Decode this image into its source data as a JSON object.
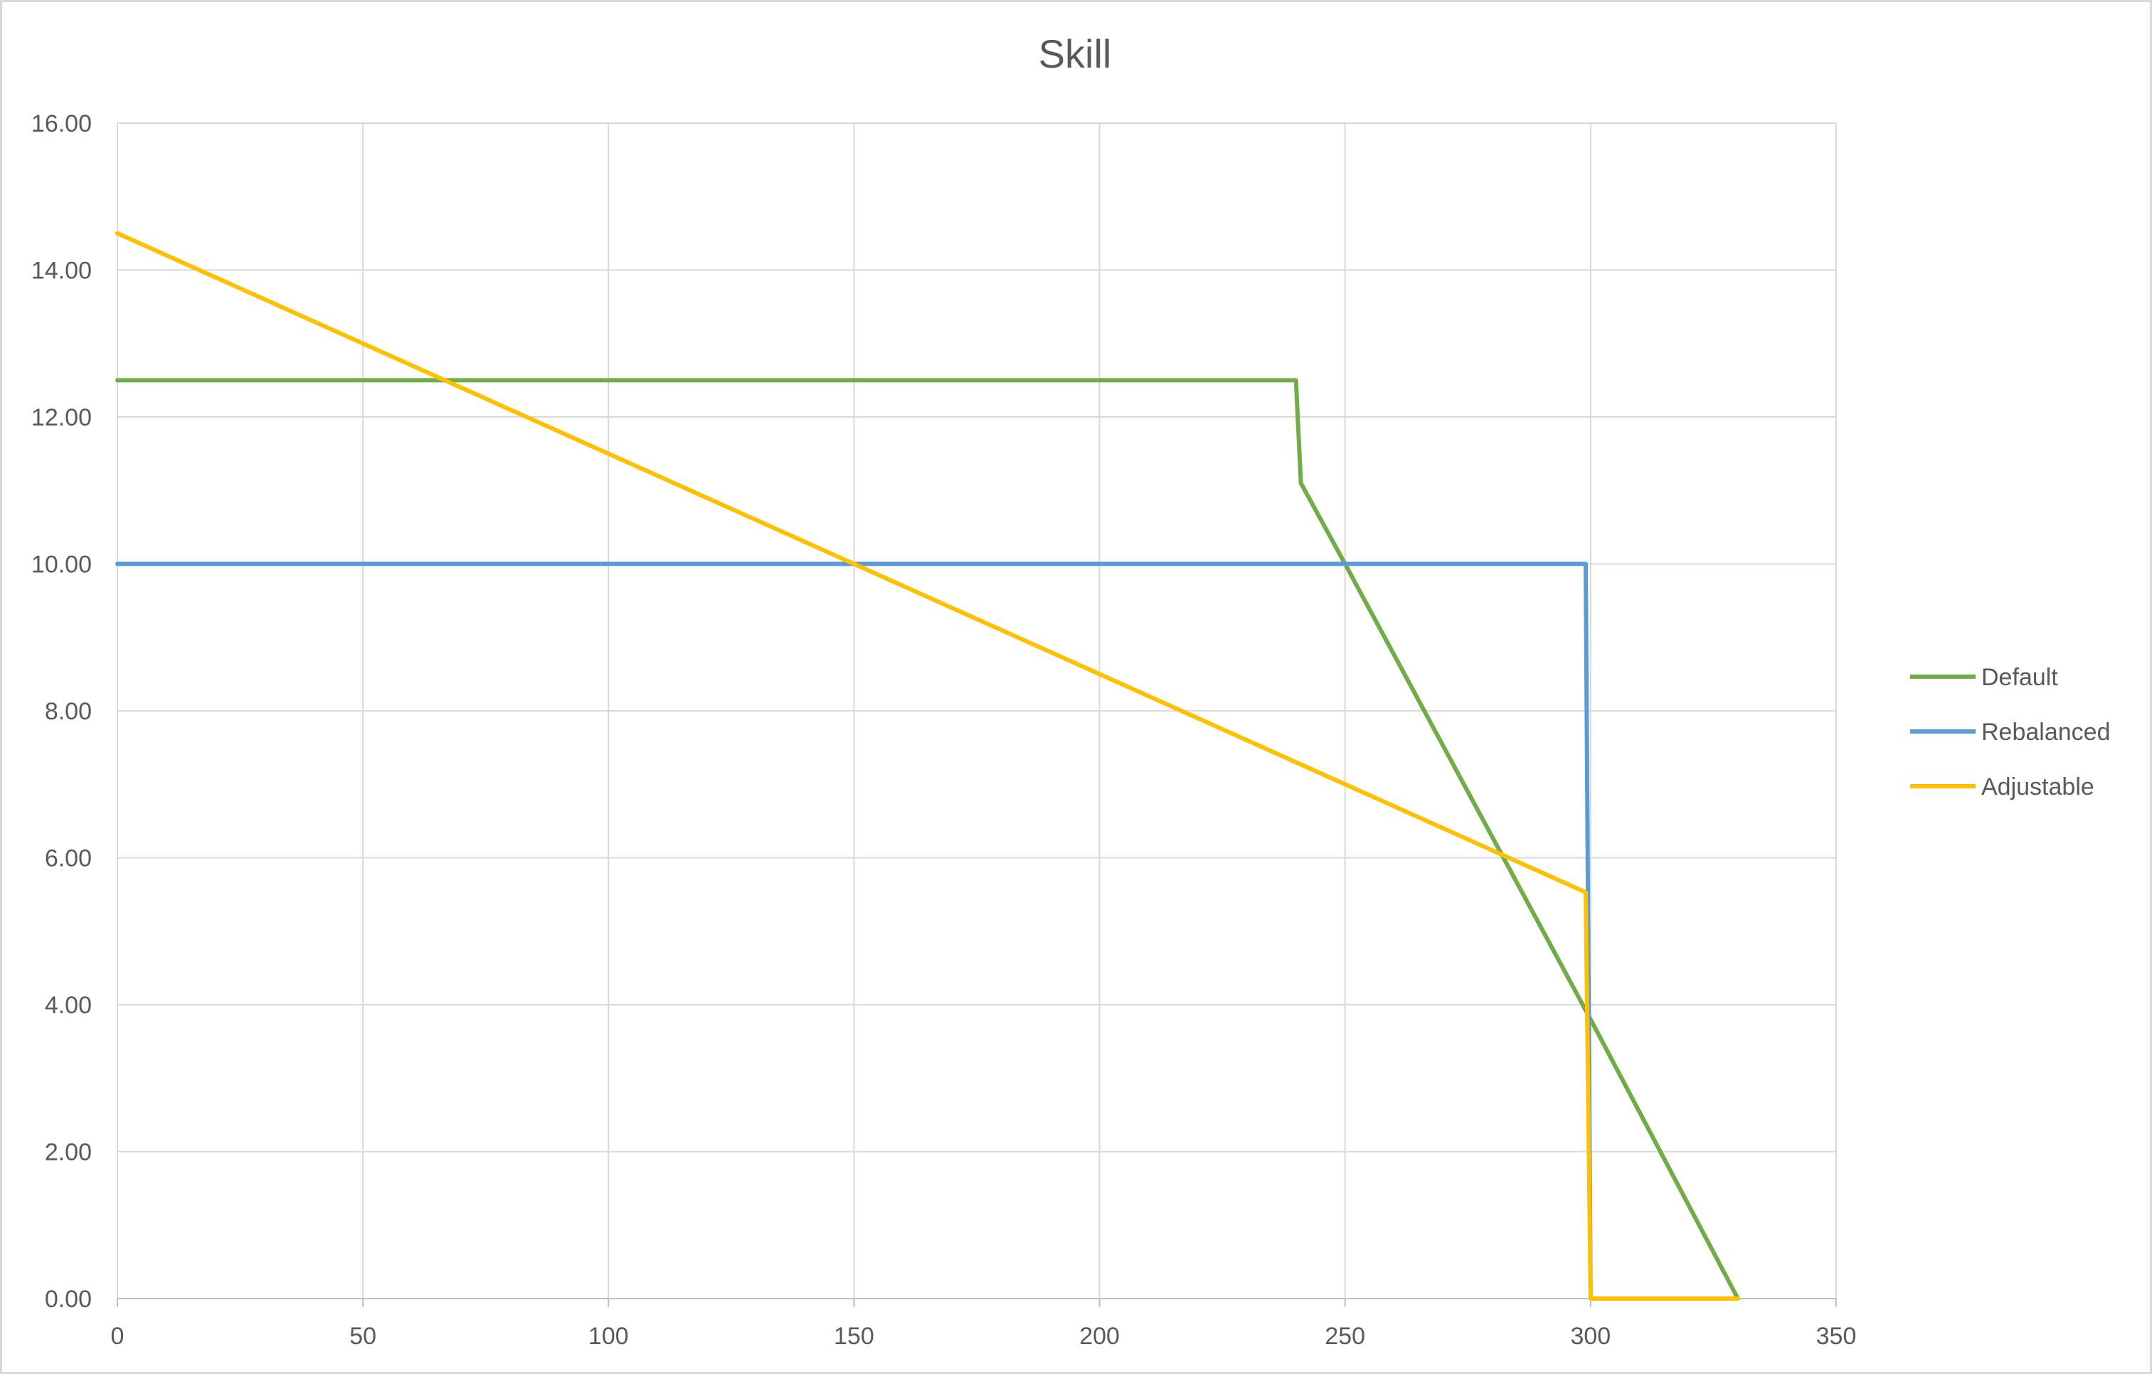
{
  "chart_data": {
    "type": "line",
    "title": "Skill",
    "xlabel": "",
    "ylabel": "",
    "xlim": [
      0,
      350
    ],
    "ylim": [
      0,
      16
    ],
    "x_ticks": [
      0,
      50,
      100,
      150,
      200,
      250,
      300,
      350
    ],
    "x_tick_labels": [
      "0",
      "50",
      "100",
      "150",
      "200",
      "250",
      "300",
      "350"
    ],
    "y_ticks": [
      0,
      2,
      4,
      6,
      8,
      10,
      12,
      14,
      16
    ],
    "y_tick_labels": [
      "0.00",
      "2.00",
      "4.00",
      "6.00",
      "8.00",
      "10.00",
      "12.00",
      "14.00",
      "16.00"
    ],
    "grid": true,
    "legend_position": "right",
    "series": [
      {
        "name": "Default",
        "color": "#70ad47",
        "points": [
          [
            0,
            12.5
          ],
          [
            240,
            12.5
          ],
          [
            241,
            11.1
          ],
          [
            250,
            10.0
          ],
          [
            300,
            3.8
          ],
          [
            330,
            0
          ]
        ]
      },
      {
        "name": "Rebalanced",
        "color": "#5b9bd5",
        "points": [
          [
            0,
            10.0
          ],
          [
            299,
            10.0
          ],
          [
            300,
            0
          ]
        ]
      },
      {
        "name": "Adjustable",
        "color": "#ffc000",
        "points": [
          [
            0,
            14.5
          ],
          [
            150,
            10.0
          ],
          [
            299,
            5.53
          ],
          [
            300,
            0
          ],
          [
            330,
            0
          ]
        ]
      }
    ]
  }
}
